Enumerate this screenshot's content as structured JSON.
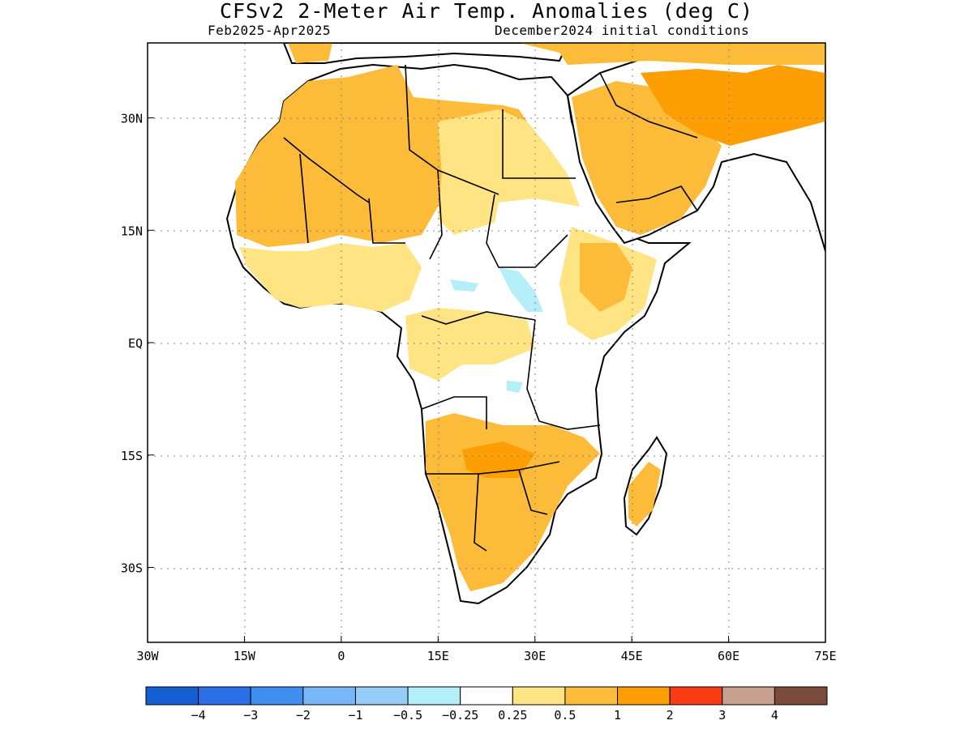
{
  "header": {
    "title": "CFSv2 2-Meter Air Temp. Anomalies (deg C)",
    "period": "Feb2025-Apr2025",
    "init": "December2024 initial conditions"
  },
  "axes": {
    "lon_ticks": [
      {
        "label": "30W",
        "value": -30
      },
      {
        "label": "15W",
        "value": -15
      },
      {
        "label": "0",
        "value": 0
      },
      {
        "label": "15E",
        "value": 15
      },
      {
        "label": "30E",
        "value": 30
      },
      {
        "label": "45E",
        "value": 45
      },
      {
        "label": "60E",
        "value": 60
      },
      {
        "label": "75E",
        "value": 75
      }
    ],
    "lat_ticks": [
      {
        "label": "30N",
        "value": 30
      },
      {
        "label": "15N",
        "value": 15
      },
      {
        "label": "EQ",
        "value": 0
      },
      {
        "label": "15S",
        "value": -15
      },
      {
        "label": "30S",
        "value": -30
      }
    ],
    "lon_range": [
      -30,
      75
    ],
    "lat_range": [
      -40,
      40
    ],
    "grid": true
  },
  "legend": {
    "colors": [
      "#1560d0",
      "#2a6fe6",
      "#3d8ff0",
      "#78b6f8",
      "#96ccf8",
      "#b4eef8",
      "#ffffff",
      "#ffe484",
      "#fdbb3a",
      "#fd9e05",
      "#fa3c14",
      "#c8a090",
      "#7a4a3c"
    ],
    "labels": [
      "-4",
      "-3",
      "-2",
      "-1",
      "-0.5",
      "-0.25",
      "0.25",
      "0.5",
      "1",
      "2",
      "3",
      "4"
    ]
  },
  "map_colors": {
    "land_neutral": "#ffffff",
    "anom_light": "#ffe484",
    "anom_mid": "#fdbb3a",
    "anom_high": "#fd9e05",
    "anom_cool": "#b4eef8",
    "coast": "#000000"
  }
}
